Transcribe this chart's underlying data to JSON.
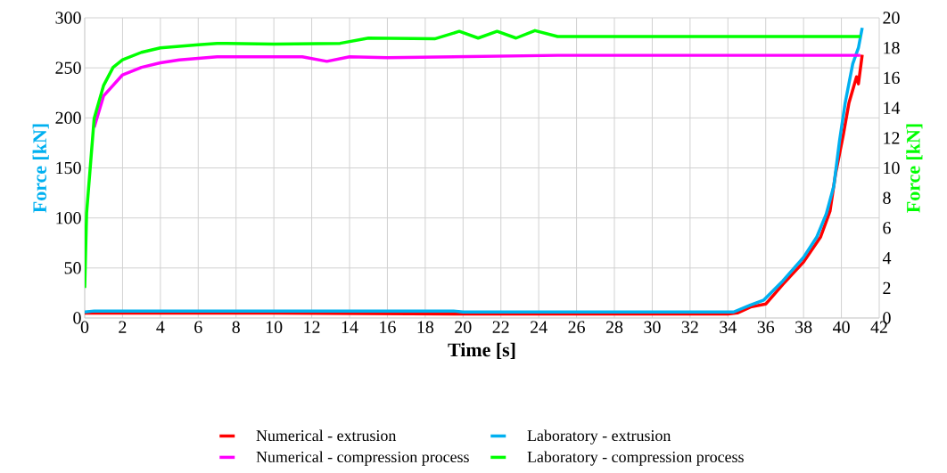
{
  "chart_data": {
    "type": "line",
    "xlabel": "Time [s]",
    "ylabel": "Force [kN]",
    "y2label": "Force [kN]",
    "xlim": [
      0,
      42
    ],
    "xticks": [
      0,
      2,
      4,
      6,
      8,
      10,
      12,
      14,
      16,
      18,
      20,
      22,
      24,
      26,
      28,
      30,
      32,
      34,
      36,
      38,
      40,
      42
    ],
    "ylim": [
      0,
      300
    ],
    "yticks": [
      0,
      50,
      100,
      150,
      200,
      250,
      300
    ],
    "y2lim": [
      0,
      20
    ],
    "y2ticks": [
      0,
      2,
      4,
      6,
      8,
      10,
      12,
      14,
      16,
      18,
      20
    ],
    "grid": true,
    "legend": "bottom",
    "line_style": "solid",
    "marker": "none",
    "series": [
      {
        "name": "Numerical - extrusion",
        "color": "#ff0000",
        "axis": "y",
        "x": [
          0,
          2,
          10,
          20,
          30,
          34,
          34.5,
          35.2,
          36,
          36.9,
          38,
          38.9,
          39.4,
          39.7,
          40.1,
          40.4,
          40.8,
          40.9,
          41.1
        ],
        "values": [
          5,
          5,
          5,
          4,
          4,
          4,
          5,
          11,
          14,
          33.5,
          56,
          81,
          107,
          145,
          183,
          215,
          241,
          234,
          263
        ]
      },
      {
        "name": "Laboratory - extrusion",
        "color": "#00b0f0",
        "axis": "y",
        "x": [
          0,
          0.5,
          2,
          10,
          19.5,
          20,
          30,
          34.3,
          35.2,
          35.9,
          36.9,
          38,
          38.7,
          39.2,
          39.6,
          39.9,
          40.2,
          40.6,
          40.9,
          41.1
        ],
        "values": [
          6,
          7,
          7,
          7,
          7,
          6,
          6,
          6,
          13,
          18,
          37,
          60.6,
          81,
          104,
          132,
          177,
          215,
          254,
          270,
          290
        ]
      },
      {
        "name": "Numerical - compression process",
        "color": "#ff00ff",
        "axis": "y2",
        "x": [
          0.5,
          1,
          2,
          3,
          4,
          5,
          6,
          7,
          11.5,
          12.8,
          14,
          16,
          25,
          41
        ],
        "values": [
          12.7,
          14.8,
          16.2,
          16.7,
          17,
          17.2,
          17.3,
          17.4,
          17.4,
          17.1,
          17.4,
          17.35,
          17.5,
          17.5
        ]
      },
      {
        "name": "Laboratory - compression process",
        "color": "#00ff00",
        "axis": "y2",
        "x": [
          0,
          0.1,
          0.5,
          1,
          1.5,
          2,
          3,
          4,
          5,
          6,
          7,
          10,
          13.5,
          15,
          18.5,
          19.8,
          20.8,
          21.8,
          22.8,
          23.8,
          25,
          41
        ],
        "values": [
          2,
          7,
          13.3,
          15.5,
          16.7,
          17.2,
          17.7,
          18,
          18.1,
          18.2,
          18.3,
          18.25,
          18.3,
          18.65,
          18.6,
          19.1,
          18.65,
          19.1,
          18.65,
          19.15,
          18.75,
          18.75
        ]
      }
    ]
  }
}
